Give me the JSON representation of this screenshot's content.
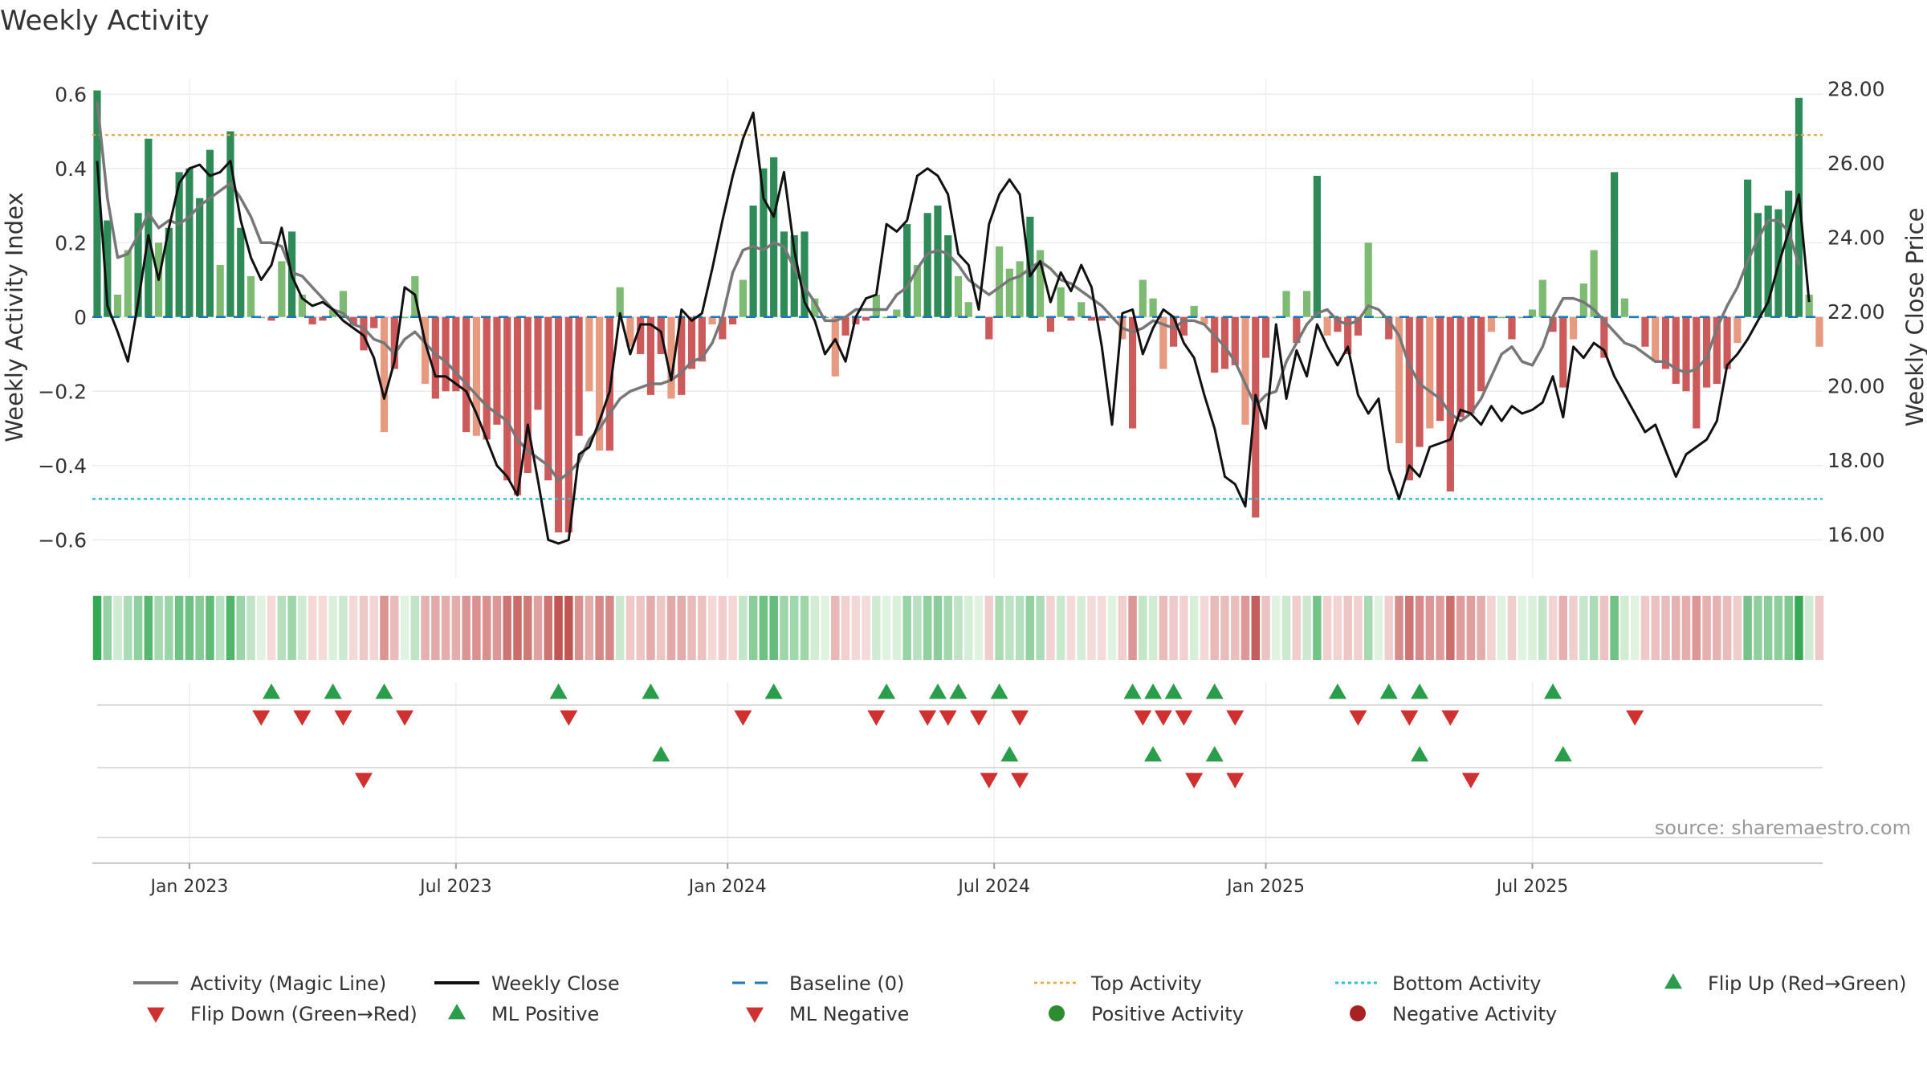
{
  "chart_data": {
    "type": "bar",
    "title": "Weekly Activity",
    "ylabel_left": "Weekly Activity Index",
    "ylabel_right": "Weekly Close Price",
    "source": "source: sharemaestro.com",
    "ylim_left": [
      -0.66,
      0.62
    ],
    "ylim_right": [
      15.6,
      28.4
    ],
    "left_ticks": [
      {
        "value": 0.6,
        "label": "0.6"
      },
      {
        "value": 0.4,
        "label": "0.4"
      },
      {
        "value": 0.2,
        "label": "0.2"
      },
      {
        "value": 0,
        "label": "0"
      },
      {
        "value": -0.2,
        "label": "−0.2"
      },
      {
        "value": -0.4,
        "label": "−0.4"
      },
      {
        "value": -0.6,
        "label": "−0.6"
      }
    ],
    "right_ticks": [
      {
        "value": 28,
        "label": "28.00"
      },
      {
        "value": 26,
        "label": "26.00"
      },
      {
        "value": 24,
        "label": "24.00"
      },
      {
        "value": 22,
        "label": "22.00"
      },
      {
        "value": 20,
        "label": "20.00"
      },
      {
        "value": 18,
        "label": "18.00"
      },
      {
        "value": 16,
        "label": "16.00"
      }
    ],
    "x_ticks": [
      {
        "week": 9,
        "label": "Jan 2023"
      },
      {
        "week": 35,
        "label": "Jul 2023"
      },
      {
        "week": 61.5,
        "label": "Jan 2024"
      },
      {
        "week": 87.5,
        "label": "Jul 2024"
      },
      {
        "week": 114,
        "label": "Jan 2025"
      },
      {
        "week": 140,
        "label": "Jul 2025"
      }
    ],
    "top_activity": 0.49,
    "bottom_activity": -0.49,
    "activity": [
      0.61,
      0.26,
      0.06,
      0.18,
      0.28,
      0.48,
      0.2,
      0.24,
      0.39,
      0.4,
      0.32,
      0.45,
      0.14,
      0.5,
      0.24,
      0.11,
      0.0,
      -0.01,
      0.15,
      0.23,
      0.06,
      -0.02,
      -0.01,
      0.02,
      0.07,
      -0.02,
      -0.09,
      -0.03,
      -0.31,
      -0.14,
      0.0,
      0.11,
      -0.18,
      -0.22,
      -0.2,
      -0.2,
      -0.31,
      -0.32,
      -0.33,
      -0.29,
      -0.44,
      -0.48,
      -0.42,
      -0.25,
      -0.44,
      -0.58,
      -0.58,
      -0.32,
      -0.2,
      -0.36,
      -0.36,
      0.08,
      -0.08,
      -0.1,
      -0.21,
      -0.1,
      -0.22,
      -0.21,
      -0.14,
      -0.12,
      -0.02,
      -0.06,
      -0.02,
      0.1,
      0.3,
      0.4,
      0.43,
      0.23,
      0.22,
      0.23,
      0.05,
      0.0,
      -0.16,
      -0.05,
      -0.02,
      -0.01,
      0.06,
      0.0,
      0.02,
      0.25,
      0.14,
      0.28,
      0.3,
      0.22,
      0.11,
      0.04,
      0.0,
      -0.06,
      0.19,
      0.13,
      0.15,
      0.27,
      0.18,
      -0.04,
      0.08,
      -0.01,
      0.04,
      -0.01,
      -0.01,
      0.0,
      -0.06,
      -0.3,
      0.1,
      0.05,
      -0.14,
      -0.08,
      -0.05,
      0.03,
      -0.02,
      -0.15,
      -0.14,
      -0.13,
      -0.29,
      -0.54,
      -0.11,
      0.0,
      0.07,
      -0.07,
      0.07,
      0.38,
      -0.05,
      -0.04,
      -0.1,
      -0.05,
      0.2,
      0.0,
      -0.06,
      -0.34,
      -0.44,
      -0.35,
      -0.3,
      -0.28,
      -0.47,
      -0.27,
      -0.26,
      -0.2,
      -0.04,
      0.0,
      -0.06,
      0.0,
      0.02,
      0.1,
      -0.04,
      -0.19,
      -0.06,
      0.09,
      0.18,
      -0.11,
      0.39,
      0.05,
      0.0,
      -0.08,
      -0.12,
      -0.14,
      -0.18,
      -0.2,
      -0.3,
      -0.19,
      -0.18,
      -0.14,
      -0.07,
      0.37,
      0.28,
      0.3,
      0.29,
      0.34,
      0.59,
      0.06,
      -0.08
    ],
    "magic_line": [
      0.58,
      0.32,
      0.16,
      0.17,
      0.22,
      0.28,
      0.24,
      0.26,
      0.25,
      0.27,
      0.3,
      0.32,
      0.34,
      0.36,
      0.32,
      0.27,
      0.2,
      0.2,
      0.19,
      0.12,
      0.11,
      0.08,
      0.05,
      0.02,
      0.01,
      -0.02,
      -0.03,
      -0.06,
      -0.07,
      -0.1,
      -0.06,
      -0.04,
      -0.07,
      -0.1,
      -0.12,
      -0.15,
      -0.18,
      -0.21,
      -0.24,
      -0.26,
      -0.28,
      -0.33,
      -0.36,
      -0.38,
      -0.4,
      -0.44,
      -0.42,
      -0.39,
      -0.33,
      -0.3,
      -0.26,
      -0.22,
      -0.2,
      -0.19,
      -0.18,
      -0.18,
      -0.17,
      -0.15,
      -0.12,
      -0.11,
      -0.07,
      0.0,
      0.12,
      0.18,
      0.19,
      0.18,
      0.2,
      0.19,
      0.13,
      0.08,
      0.04,
      -0.01,
      -0.01,
      -0.0,
      0.02,
      0.02,
      0.02,
      0.02,
      0.06,
      0.08,
      0.13,
      0.17,
      0.18,
      0.17,
      0.14,
      0.1,
      0.08,
      0.06,
      0.08,
      0.1,
      0.11,
      0.13,
      0.15,
      0.13,
      0.1,
      0.09,
      0.07,
      0.05,
      0.03,
      0.0,
      -0.03,
      -0.04,
      -0.03,
      -0.01,
      -0.02,
      -0.03,
      -0.01,
      -0.01,
      -0.02,
      -0.05,
      -0.08,
      -0.12,
      -0.18,
      -0.24,
      -0.21,
      -0.2,
      -0.12,
      -0.07,
      -0.02,
      0.01,
      0.02,
      -0.01,
      -0.02,
      -0.01,
      0.03,
      0.02,
      -0.01,
      -0.05,
      -0.13,
      -0.18,
      -0.2,
      -0.22,
      -0.26,
      -0.28,
      -0.26,
      -0.22,
      -0.16,
      -0.1,
      -0.08,
      -0.12,
      -0.13,
      -0.08,
      0.0,
      0.05,
      0.05,
      0.04,
      0.02,
      -0.01,
      -0.04,
      -0.07,
      -0.08,
      -0.1,
      -0.12,
      -0.12,
      -0.14,
      -0.15,
      -0.14,
      -0.11,
      -0.03,
      0.03,
      0.08,
      0.15,
      0.21,
      0.26,
      0.26,
      0.23,
      0.14
    ],
    "weekly_close": [
      26.4,
      22.5,
      21.8,
      21.0,
      22.6,
      24.4,
      23.2,
      24.6,
      25.8,
      26.2,
      26.3,
      26.0,
      26.1,
      26.4,
      24.8,
      23.8,
      23.2,
      23.6,
      24.6,
      23.3,
      22.7,
      22.5,
      22.6,
      22.4,
      22.1,
      21.9,
      21.7,
      21.1,
      20.0,
      21.0,
      23.0,
      22.8,
      21.5,
      20.6,
      20.6,
      20.4,
      20.2,
      19.6,
      18.9,
      18.2,
      17.9,
      17.4,
      19.3,
      17.8,
      16.2,
      16.1,
      16.2,
      18.5,
      18.7,
      19.4,
      20.2,
      22.3,
      21.2,
      22.0,
      22.0,
      21.8,
      20.5,
      22.4,
      22.1,
      22.3,
      23.5,
      24.8,
      26.0,
      27.0,
      27.7,
      25.4,
      24.9,
      26.1,
      24.0,
      22.6,
      22.1,
      21.2,
      21.6,
      21.0,
      22.2,
      22.7,
      22.8,
      24.7,
      24.5,
      24.8,
      26.0,
      26.2,
      26.0,
      25.5,
      23.9,
      23.6,
      22.4,
      24.7,
      25.5,
      25.9,
      25.5,
      23.3,
      23.7,
      22.6,
      23.4,
      22.9,
      23.6,
      23.0,
      21.4,
      19.3,
      22.3,
      22.4,
      21.2,
      21.9,
      22.4,
      22.2,
      21.5,
      21.1,
      20.1,
      19.2,
      17.9,
      17.7,
      17.1,
      20.1,
      19.2,
      22.0,
      20.0,
      21.3,
      20.6,
      22.0,
      21.4,
      20.9,
      21.4,
      20.1,
      19.6,
      20.0,
      18.1,
      17.3,
      18.2,
      17.9,
      18.7,
      18.8,
      18.9,
      19.7,
      19.6,
      19.3,
      19.8,
      19.4,
      19.8,
      19.6,
      19.7,
      19.9,
      20.6,
      19.5,
      21.4,
      21.1,
      21.5,
      21.3,
      20.6,
      20.1,
      19.6,
      19.1,
      19.3,
      18.6,
      17.9,
      18.5,
      18.7,
      18.9,
      19.4,
      20.9,
      21.2,
      21.6,
      22.1,
      22.6,
      23.6,
      24.5,
      25.5,
      22.6
    ],
    "flip_up": [
      17,
      23,
      28,
      45,
      54,
      66,
      77,
      82,
      84,
      88,
      101,
      103,
      105,
      109,
      121,
      126,
      129,
      142
    ],
    "flip_down": [
      16,
      20,
      24,
      30,
      46,
      63,
      76,
      81,
      83,
      86,
      90,
      102,
      104,
      106,
      111,
      123,
      128,
      132,
      150
    ],
    "ml_positive": [
      55,
      89,
      103,
      109,
      129,
      143
    ],
    "ml_negative": [
      26,
      87,
      90,
      107,
      111,
      134
    ],
    "legend": [
      {
        "label": "Activity (Magic Line)",
        "symbol": "line-gray"
      },
      {
        "label": "Weekly Close",
        "symbol": "line-black"
      },
      {
        "label": "Baseline (0)",
        "symbol": "dash-blue"
      },
      {
        "label": "Top Activity",
        "symbol": "dot-orange"
      },
      {
        "label": "Bottom Activity",
        "symbol": "dot-cyan"
      },
      {
        "label": "Flip Up (Red→Green)",
        "symbol": "tri-up-green"
      },
      {
        "label": "Flip Down (Green→Red)",
        "symbol": "tri-down-red"
      },
      {
        "label": "ML Positive",
        "symbol": "tri-up-green"
      },
      {
        "label": "ML Negative",
        "symbol": "tri-down-red"
      },
      {
        "label": "Positive Activity",
        "symbol": "circle-green"
      },
      {
        "label": "Negative Activity",
        "symbol": "circle-red"
      }
    ],
    "colors": {
      "pos_strong": "#2e8b57",
      "pos_light": "#7dbb72",
      "neg_strong": "#cd5a5a",
      "neg_light": "#e89a80",
      "magic_line": "#777777",
      "close": "#111111",
      "baseline": "#1f77b4",
      "top": "#f0a040",
      "bottom": "#30c0d8",
      "tri_green": "#2a9d4a",
      "tri_red": "#d03030",
      "dot_green": "#2e8b2e",
      "dot_red": "#a82222"
    }
  }
}
